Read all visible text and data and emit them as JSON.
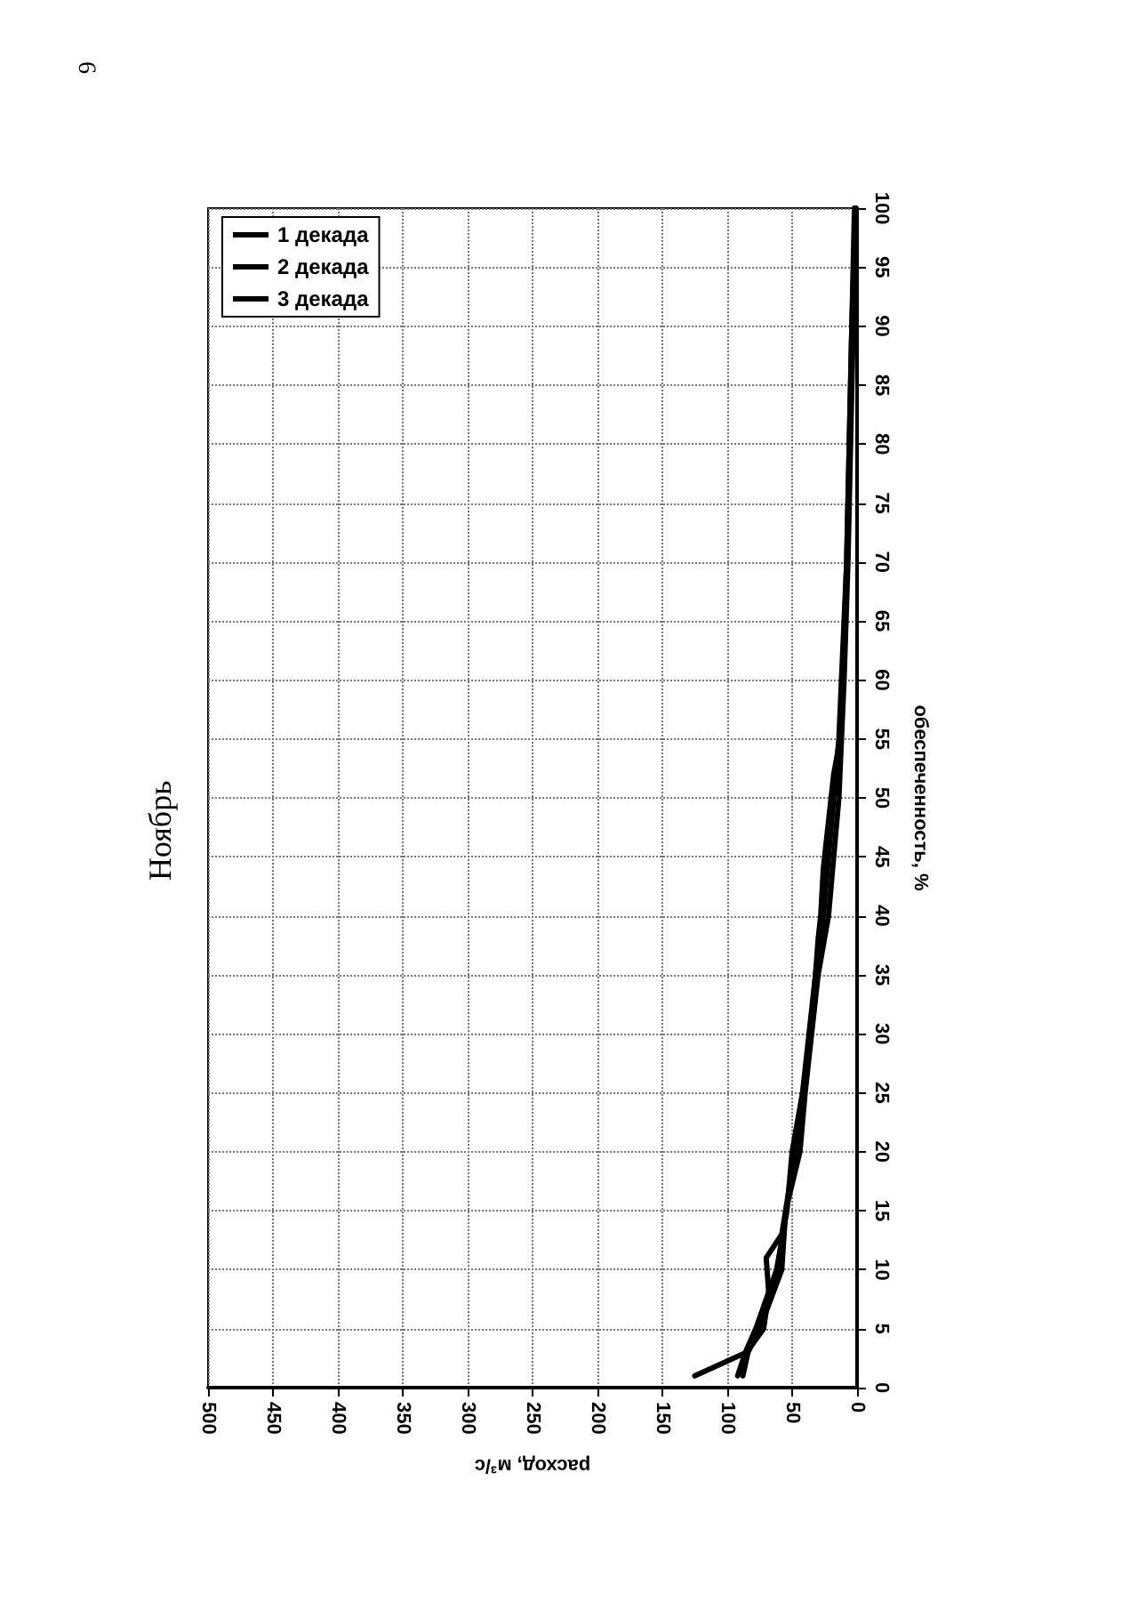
{
  "chart_data": {
    "type": "line",
    "title": "Ноябрь",
    "xlabel": "расход, м³/с",
    "ylabel": "обеспеченность, %",
    "annotations": [
      "6"
    ],
    "xlim": [
      500,
      0
    ],
    "xticks": [
      500,
      450,
      400,
      350,
      300,
      250,
      200,
      150,
      100,
      50,
      0
    ],
    "ylim": [
      0,
      100
    ],
    "yticks": [
      0,
      5,
      10,
      15,
      20,
      25,
      30,
      35,
      40,
      45,
      50,
      55,
      60,
      65,
      70,
      75,
      80,
      85,
      90,
      95,
      100
    ],
    "grid": true,
    "legend": "top left",
    "marker": "none",
    "line_style": "solid",
    "series": [
      {
        "name": "1 декада",
        "color": "#000000",
        "x": [
          125,
          85,
          72,
          68,
          70,
          58,
          55,
          48,
          41,
          36,
          32,
          26,
          22,
          18,
          14,
          12,
          8,
          6,
          4,
          2
        ],
        "values": [
          1,
          3,
          5,
          8,
          11,
          13,
          15,
          20,
          25,
          30,
          35,
          40,
          45,
          50,
          55,
          60,
          70,
          80,
          90,
          100
        ]
      },
      {
        "name": "2 декада",
        "color": "#000000",
        "x": [
          92,
          86,
          78,
          62,
          54,
          50,
          42,
          37,
          32,
          30,
          28,
          26,
          20,
          18,
          13,
          11,
          8,
          6,
          4,
          1
        ],
        "values": [
          1,
          3,
          5,
          10,
          15,
          20,
          25,
          30,
          35,
          38,
          40,
          44,
          50,
          52,
          55,
          60,
          70,
          80,
          90,
          100
        ]
      },
      {
        "name": "3 декада",
        "color": "#000000",
        "x": [
          88,
          84,
          75,
          58,
          55,
          44,
          40,
          35,
          30,
          22,
          18,
          14,
          12,
          10,
          7,
          5,
          3,
          1
        ],
        "values": [
          1,
          3,
          5,
          10,
          15,
          20,
          25,
          30,
          35,
          40,
          45,
          50,
          55,
          60,
          70,
          80,
          90,
          100
        ]
      }
    ]
  }
}
